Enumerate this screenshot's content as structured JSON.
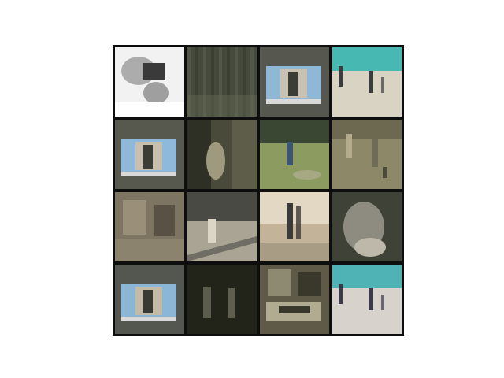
{
  "figure": {
    "rows": 4,
    "cols": 4,
    "background": "#ffffff",
    "grid_line_color": "#0e0e0e",
    "tiles": [
      {
        "name": "tile-r1-c1",
        "scene": "bright-washed-figure",
        "base": "#c9c9c9",
        "tones": [
          "#f2f2f2",
          "#3a3a3a",
          "#8a8a8a"
        ]
      },
      {
        "name": "tile-r1-c2",
        "scene": "dark-foliage-texture",
        "base": "#454a3c",
        "tones": [
          "#5b6350",
          "#343a2c",
          "#6b7058"
        ]
      },
      {
        "name": "tile-r1-c3",
        "scene": "gray-screen-panel",
        "base": "#56584f",
        "tones": [
          "#8fb7d6",
          "#c9c2b2",
          "#3b3d36"
        ]
      },
      {
        "name": "tile-r1-c4",
        "scene": "court-players-cyan",
        "base": "#bfc0b4",
        "tones": [
          "#48b8b2",
          "#3b3d3c",
          "#d9d3c4"
        ]
      },
      {
        "name": "tile-r2-c1",
        "scene": "gray-screen-panel",
        "base": "#57594f",
        "tones": [
          "#8fb9db",
          "#c8c0ae",
          "#3b3d36"
        ]
      },
      {
        "name": "tile-r2-c2",
        "scene": "dim-figure-pale",
        "base": "#4a4a3b",
        "tones": [
          "#9f9a7d",
          "#2f3025",
          "#6d6b55"
        ]
      },
      {
        "name": "tile-r2-c3",
        "scene": "green-field-player",
        "base": "#6e7b4f",
        "tones": [
          "#8c9b5f",
          "#3a4733",
          "#b8b39a"
        ]
      },
      {
        "name": "tile-r2-c4",
        "scene": "olive-field-players",
        "base": "#8d8868",
        "tones": [
          "#b3ab8a",
          "#4b4a38",
          "#6e6c55"
        ]
      },
      {
        "name": "tile-r3-c1",
        "scene": "brown-interior",
        "base": "#7d7462",
        "tones": [
          "#a79c85",
          "#4a4438",
          "#8c836f"
        ]
      },
      {
        "name": "tile-r3-c2",
        "scene": "gym-white-figure",
        "base": "#8e8b80",
        "tones": [
          "#dcd6c6",
          "#4a4a45",
          "#a9a494"
        ]
      },
      {
        "name": "tile-r3-c3",
        "scene": "indoor-court-players",
        "base": "#c3b499",
        "tones": [
          "#e3d8c3",
          "#3b3a39",
          "#a89c84"
        ]
      },
      {
        "name": "tile-r3-c4",
        "scene": "blurred-figure-closeup",
        "base": "#60624f",
        "tones": [
          "#8e8c80",
          "#3f4236",
          "#bdb8aa"
        ]
      },
      {
        "name": "tile-r4-c1",
        "scene": "gray-screen-panel",
        "base": "#545650",
        "tones": [
          "#8cb6d5",
          "#c4bba7",
          "#393a34"
        ]
      },
      {
        "name": "tile-r4-c2",
        "scene": "dark-room",
        "base": "#38392f",
        "tones": [
          "#5c5c4c",
          "#232419",
          "#7a7862"
        ]
      },
      {
        "name": "tile-r4-c3",
        "scene": "cluttered-interior",
        "base": "#5e5a47",
        "tones": [
          "#8e8a72",
          "#3a382b",
          "#b1ab91"
        ]
      },
      {
        "name": "tile-r4-c4",
        "scene": "court-players-cyan",
        "base": "#bab8b4",
        "tones": [
          "#4fb2b4",
          "#3a3a49",
          "#d8d2cc"
        ]
      }
    ]
  }
}
